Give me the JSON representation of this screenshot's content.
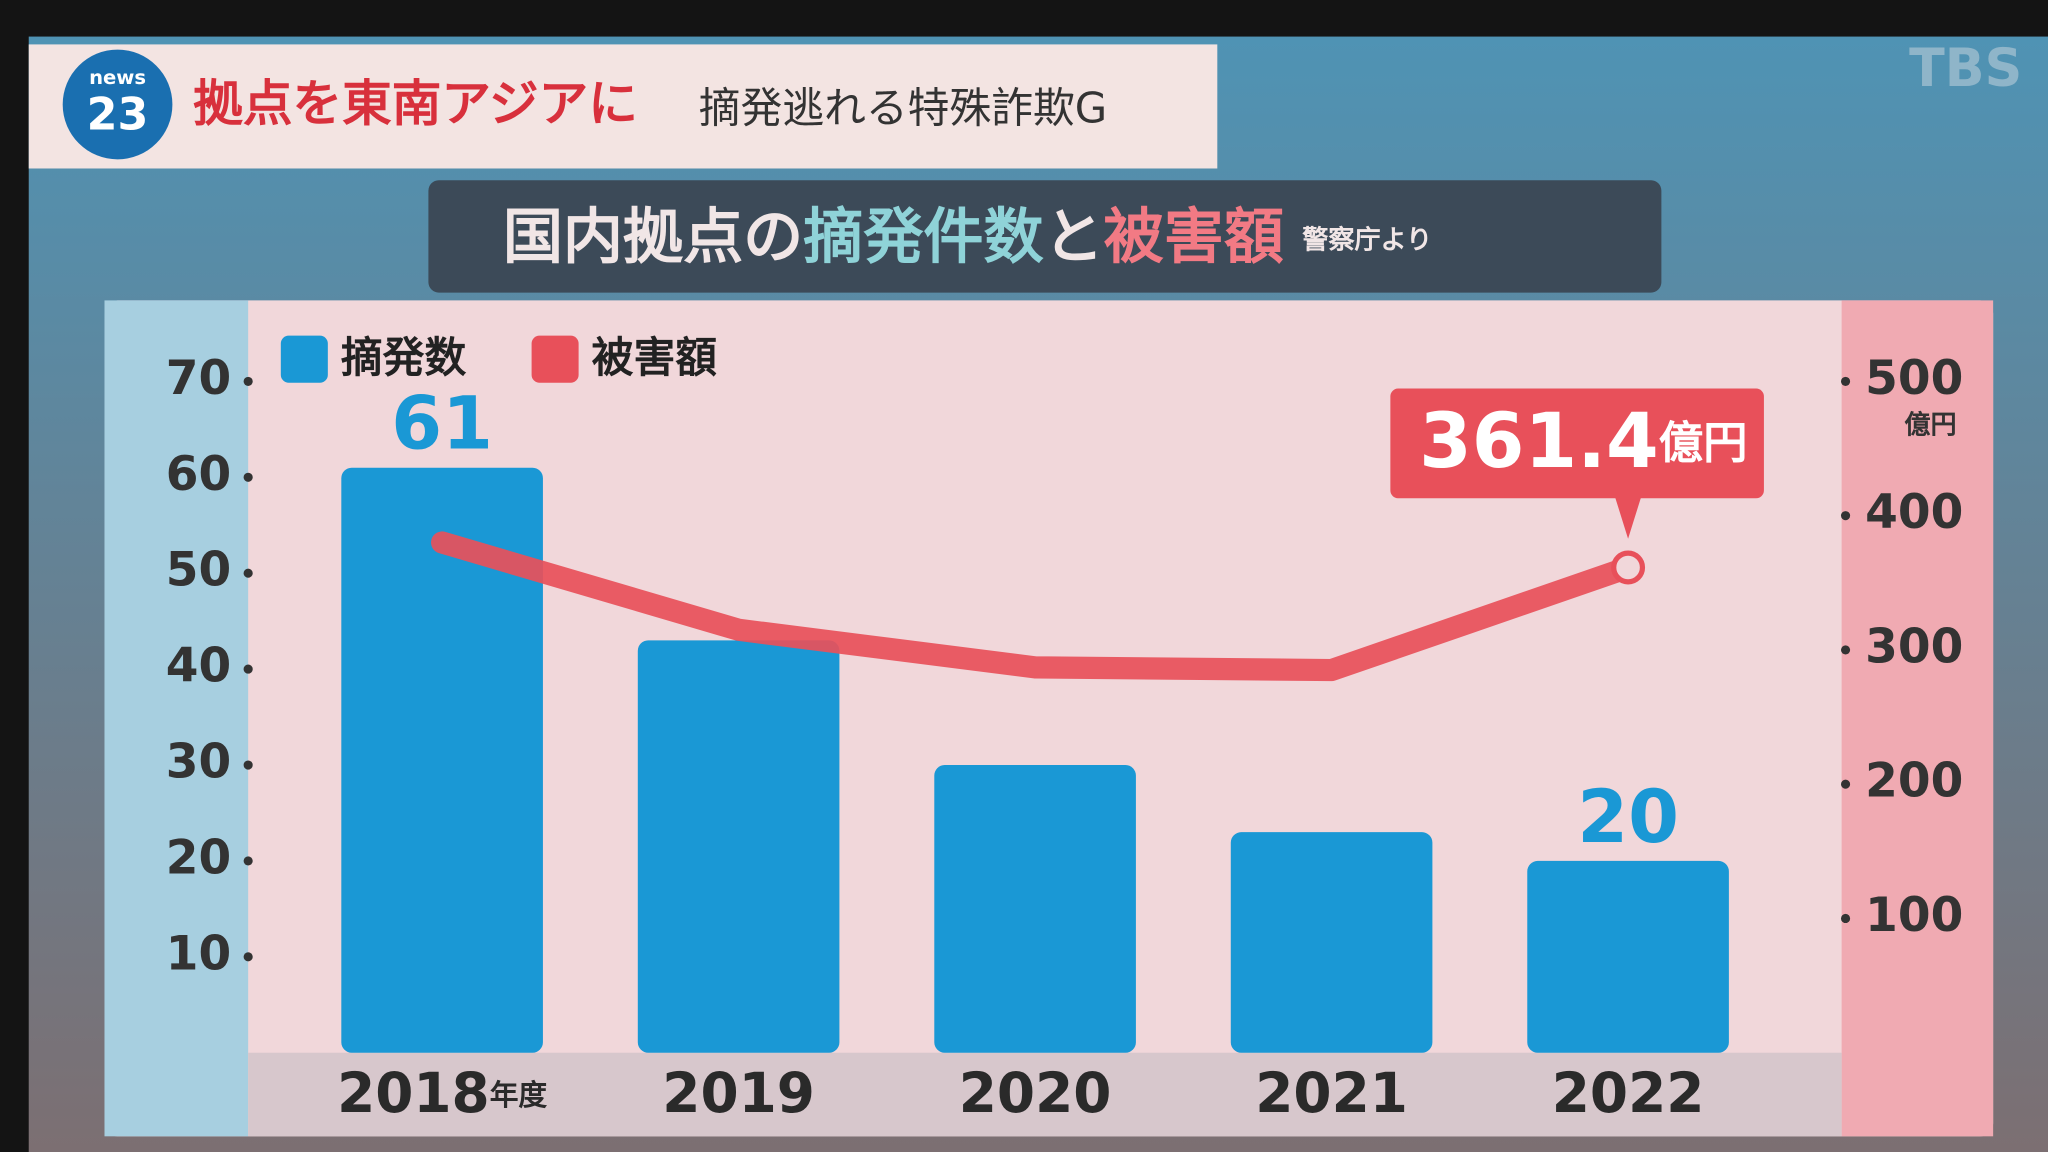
{
  "header": {
    "logo_top": "news",
    "logo_number": "23",
    "headline": "拠点を東南アジアに",
    "subheadline": "摘発逃れる特殊詐欺G",
    "channel": "TBS"
  },
  "chart_data": {
    "type": "bar-line",
    "title_parts": [
      "国内拠点の",
      "摘発件数",
      "と",
      "被害額"
    ],
    "source": "警察庁より",
    "categories": [
      "2018",
      "2019",
      "2020",
      "2021",
      "2022"
    ],
    "x_unit": "年度",
    "series": [
      {
        "name": "摘発数",
        "type": "bar",
        "color": "#1a98d5",
        "values": [
          61,
          43,
          30,
          23,
          20
        ],
        "labeled": [
          0,
          4
        ]
      },
      {
        "name": "被害額",
        "type": "line",
        "axis": "y2",
        "color": "#e8505a",
        "values": [
          380,
          315,
          287,
          285,
          361.4
        ],
        "labeled": [
          4
        ]
      }
    ],
    "ylim": [
      0,
      70
    ],
    "yticks": [
      10,
      20,
      30,
      40,
      50,
      60,
      70
    ],
    "y2lim": [
      0,
      500
    ],
    "y2ticks": [
      100,
      200,
      300,
      400,
      500
    ],
    "y2_unit": "億円"
  }
}
